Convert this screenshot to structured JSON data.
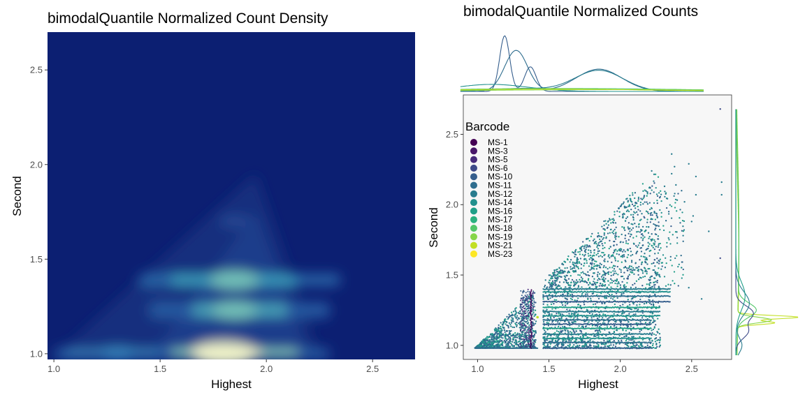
{
  "chart_data": [
    {
      "type": "heatmap",
      "title": "bimodalQuantile Normalized Count Density",
      "xlabel": "Highest",
      "ylabel": "Second",
      "xlim": [
        0.97,
        2.7
      ],
      "ylim": [
        0.97,
        2.7
      ],
      "xticks": [
        "1.0",
        "1.5",
        "2.0",
        "2.5"
      ],
      "yticks": [
        "1.0",
        "1.5",
        "2.0",
        "2.5"
      ],
      "colormap": [
        "#0c1f72",
        "#23479c",
        "#2f78b3",
        "#40b5c4",
        "#8fd3bb",
        "#ffffcc"
      ],
      "density_peaks": [
        {
          "x": 1.8,
          "y": 1.0,
          "intensity": 1.0
        },
        {
          "x": 1.85,
          "y": 1.39,
          "intensity": 0.62
        },
        {
          "x": 1.85,
          "y": 1.23,
          "intensity": 0.55
        },
        {
          "x": 1.3,
          "y": 1.0,
          "intensity": 0.35
        },
        {
          "x": 1.85,
          "y": 1.7,
          "intensity": 0.22
        }
      ]
    },
    {
      "type": "scatter",
      "title": "bimodalQuantile Normalized Counts",
      "xlabel": "Highest",
      "ylabel": "Second",
      "xlim": [
        0.9,
        2.78
      ],
      "ylim": [
        0.9,
        2.78
      ],
      "xticks": [
        "1.0",
        "1.5",
        "2.0",
        "2.5"
      ],
      "yticks": [
        "1.0",
        "1.5",
        "2.0",
        "2.5"
      ],
      "marginals": "density curves per barcode on top and right",
      "legend": {
        "title": "Barcode",
        "position": "top-left inside",
        "entries": [
          {
            "name": "MS-1",
            "color": "#440154"
          },
          {
            "name": "MS-3",
            "color": "#481769"
          },
          {
            "name": "MS-5",
            "color": "#472a7a"
          },
          {
            "name": "MS-6",
            "color": "#3e4a89"
          },
          {
            "name": "MS-10",
            "color": "#355e8d"
          },
          {
            "name": "MS-11",
            "color": "#2e6d8e"
          },
          {
            "name": "MS-12",
            "color": "#287c8e"
          },
          {
            "name": "MS-14",
            "color": "#21908d"
          },
          {
            "name": "MS-16",
            "color": "#1f9f88"
          },
          {
            "name": "MS-17",
            "color": "#2ab07f"
          },
          {
            "name": "MS-18",
            "color": "#52c569"
          },
          {
            "name": "MS-19",
            "color": "#86d549"
          },
          {
            "name": "MS-21",
            "color": "#c2df23"
          },
          {
            "name": "MS-23",
            "color": "#fde725"
          }
        ]
      },
      "outlier_points": [
        [
          2.7,
          2.68
        ],
        [
          2.36,
          2.36
        ],
        [
          2.22,
          2.24
        ],
        [
          2.38,
          2.27
        ],
        [
          2.48,
          2.29
        ],
        [
          2.36,
          2.22
        ],
        [
          2.53,
          2.2
        ],
        [
          2.71,
          2.16
        ],
        [
          2.53,
          2.07
        ],
        [
          2.71,
          2.07
        ],
        [
          2.39,
          2.14
        ],
        [
          2.31,
          2.13
        ],
        [
          2.45,
          2.02
        ],
        [
          2.51,
          1.92
        ],
        [
          2.62,
          1.81
        ],
        [
          2.7,
          1.62
        ],
        [
          2.5,
          1.88
        ],
        [
          2.57,
          1.33
        ],
        [
          2.48,
          1.41
        ]
      ]
    }
  ]
}
